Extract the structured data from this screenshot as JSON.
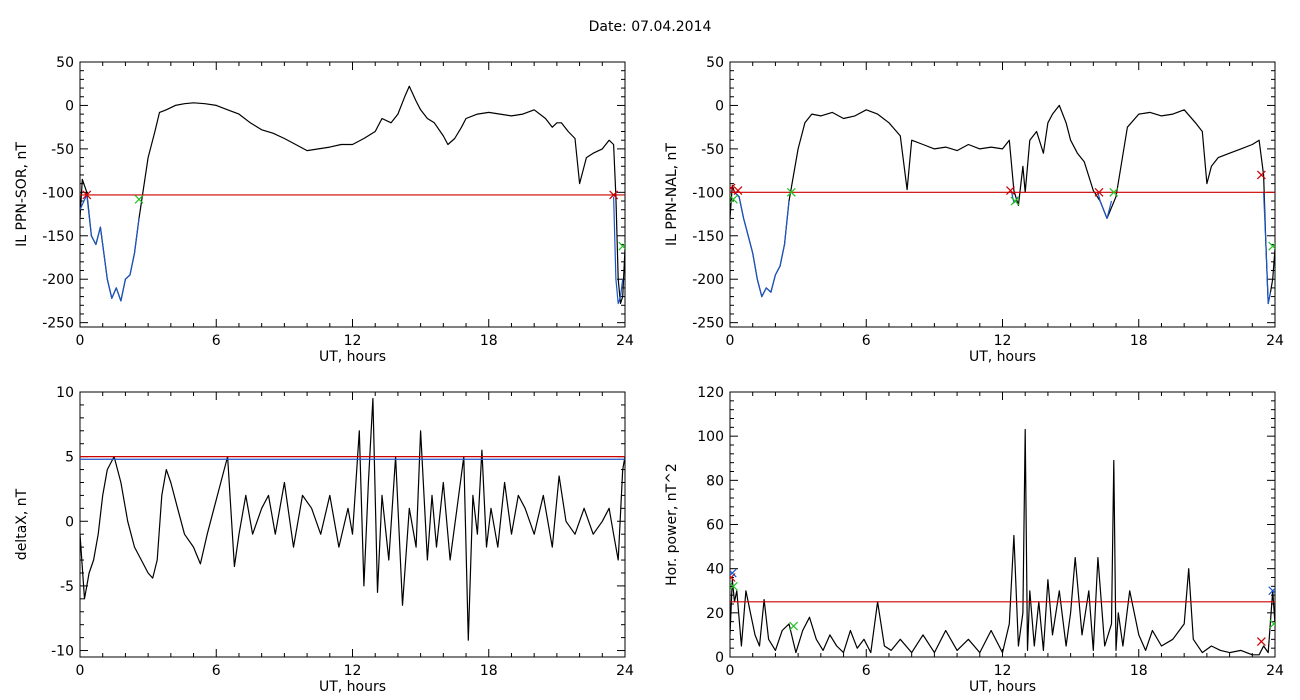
{
  "figure": {
    "title": "Date:  07.04.2014"
  },
  "chart_data": [
    {
      "type": "line",
      "id": "p1",
      "xlabel": "UT, hours",
      "ylabel": "IL PPN-SOR, nT",
      "xlim": [
        0,
        24
      ],
      "ylim": [
        -255,
        50
      ],
      "xticks": [
        0,
        6,
        12,
        18,
        24
      ],
      "yticks": [
        50,
        0,
        -50,
        -100,
        -150,
        -200,
        -250
      ],
      "threshold": -103,
      "series": [
        {
          "color": "#000000",
          "x": [
            0,
            0.1,
            0.3,
            0.5,
            0.7,
            0.9,
            1.0,
            1.2,
            1.4,
            1.6,
            1.8,
            2.0,
            2.2,
            2.4,
            2.6,
            3.0,
            3.3,
            3.5,
            3.8,
            4.2,
            4.6,
            5.0,
            5.5,
            6.0,
            6.5,
            7.0,
            7.5,
            8.0,
            8.5,
            9.0,
            9.5,
            10.0,
            10.5,
            11.0,
            11.5,
            12.0,
            12.5,
            13.0,
            13.3,
            13.7,
            14.0,
            14.3,
            14.5,
            14.8,
            15.0,
            15.3,
            15.6,
            16.0,
            16.2,
            16.5,
            16.8,
            17.0,
            17.5,
            18.0,
            18.5,
            19.0,
            19.5,
            20.0,
            20.5,
            20.8,
            21.0,
            21.2,
            21.5,
            21.8,
            22.0,
            22.3,
            22.6,
            23.0,
            23.3,
            23.5,
            23.6,
            23.7,
            23.8,
            23.9,
            24.0
          ],
          "y": [
            -130,
            -85,
            -100,
            -150,
            -160,
            -140,
            -160,
            -200,
            -222,
            -210,
            -225,
            -200,
            -195,
            -170,
            -130,
            -60,
            -30,
            -8,
            -5,
            0,
            2,
            3,
            2,
            0,
            -5,
            -10,
            -20,
            -28,
            -32,
            -38,
            -45,
            -52,
            -50,
            -48,
            -45,
            -45,
            -38,
            -30,
            -15,
            -20,
            -10,
            10,
            22,
            5,
            -5,
            -15,
            -20,
            -35,
            -45,
            -38,
            -25,
            -15,
            -10,
            -8,
            -10,
            -12,
            -10,
            -5,
            -15,
            -25,
            -20,
            -20,
            -30,
            -38,
            -90,
            -60,
            -55,
            -50,
            -40,
            -45,
            -105,
            -200,
            -228,
            -220,
            -165
          ]
        },
        {
          "color": "#1a56c8",
          "x": [
            0.0,
            0.3,
            0.5,
            0.7,
            0.9,
            1.0,
            1.2,
            1.4,
            1.6,
            1.8,
            2.0,
            2.2,
            2.4,
            2.6
          ],
          "y": [
            -120,
            -103,
            -150,
            -160,
            -140,
            -160,
            -200,
            -222,
            -210,
            -225,
            -200,
            -195,
            -170,
            -130
          ]
        },
        {
          "color": "#1a56c8",
          "x": [
            23.5,
            23.6,
            23.7,
            23.8,
            23.9
          ],
          "y": [
            -105,
            -200,
            -228,
            -220,
            -200
          ]
        }
      ],
      "markers": [
        {
          "color": "#cc0000",
          "x": [
            0.3,
            23.5
          ],
          "y": [
            -103,
            -103
          ]
        },
        {
          "color": "#22c322",
          "x": [
            2.6,
            23.9
          ],
          "y": [
            -108,
            -162
          ]
        }
      ]
    },
    {
      "type": "line",
      "id": "p2",
      "xlabel": "UT, hours",
      "ylabel": "IL PPN-NAL, nT",
      "xlim": [
        0,
        24
      ],
      "ylim": [
        -255,
        50
      ],
      "xticks": [
        0,
        6,
        12,
        18,
        24
      ],
      "yticks": [
        50,
        0,
        -50,
        -100,
        -150,
        -200,
        -250
      ],
      "threshold": -100,
      "series": [
        {
          "color": "#000000",
          "x": [
            0,
            0.1,
            0.2,
            0.4,
            0.6,
            0.8,
            1.0,
            1.2,
            1.4,
            1.6,
            1.8,
            2.0,
            2.2,
            2.4,
            2.6,
            3.0,
            3.3,
            3.6,
            4.0,
            4.5,
            5.0,
            5.5,
            6.0,
            6.5,
            7.0,
            7.5,
            7.8,
            8.0,
            8.5,
            9.0,
            9.5,
            10.0,
            10.5,
            11.0,
            11.5,
            12.0,
            12.3,
            12.5,
            12.7,
            12.9,
            13.0,
            13.2,
            13.5,
            13.8,
            14.0,
            14.2,
            14.5,
            14.8,
            15.0,
            15.3,
            15.6,
            16.0,
            16.3,
            16.6,
            17.0,
            17.5,
            18.0,
            18.5,
            19.0,
            19.5,
            20.0,
            20.5,
            20.8,
            21.0,
            21.2,
            21.5,
            22.0,
            22.5,
            23.0,
            23.3,
            23.5,
            23.6,
            23.7,
            23.8,
            23.9,
            24.0
          ],
          "y": [
            -130,
            -92,
            -100,
            -105,
            -130,
            -150,
            -170,
            -200,
            -220,
            -210,
            -215,
            -195,
            -185,
            -160,
            -110,
            -50,
            -20,
            -10,
            -12,
            -8,
            -15,
            -12,
            -5,
            -10,
            -20,
            -35,
            -97,
            -40,
            -45,
            -50,
            -48,
            -52,
            -45,
            -50,
            -48,
            -50,
            -40,
            -98,
            -115,
            -70,
            -100,
            -40,
            -30,
            -55,
            -20,
            -10,
            0,
            -20,
            -40,
            -55,
            -65,
            -98,
            -110,
            -130,
            -105,
            -25,
            -10,
            -8,
            -12,
            -10,
            -5,
            -20,
            -30,
            -90,
            -70,
            -60,
            -55,
            -50,
            -45,
            -40,
            -80,
            -160,
            -228,
            -215,
            -200,
            -165
          ]
        },
        {
          "color": "#1a56c8",
          "x": [
            0.2,
            0.4,
            0.6,
            0.8,
            1.0,
            1.2,
            1.4,
            1.6,
            1.8,
            2.0,
            2.2,
            2.4,
            2.6
          ],
          "y": [
            -100,
            -105,
            -130,
            -150,
            -170,
            -200,
            -220,
            -210,
            -215,
            -195,
            -185,
            -160,
            -110
          ]
        },
        {
          "color": "#1a56c8",
          "x": [
            12.4,
            12.5,
            12.7
          ],
          "y": [
            -100,
            -112,
            -105
          ]
        },
        {
          "color": "#1a56c8",
          "x": [
            16.2,
            16.3,
            16.6,
            16.8
          ],
          "y": [
            -100,
            -110,
            -130,
            -110
          ]
        },
        {
          "color": "#1a56c8",
          "x": [
            23.5,
            23.6,
            23.7,
            23.8
          ],
          "y": [
            -100,
            -160,
            -228,
            -215
          ]
        }
      ],
      "markers": [
        {
          "color": "#cc0000",
          "x": [
            0.05,
            0.35,
            12.35,
            16.25,
            23.4
          ],
          "y": [
            -95,
            -98,
            -98,
            -100,
            -80
          ]
        },
        {
          "color": "#22c322",
          "x": [
            0.15,
            2.7,
            12.55,
            16.9,
            23.9
          ],
          "y": [
            -108,
            -100,
            -110,
            -100,
            -162
          ]
        }
      ]
    },
    {
      "type": "line",
      "id": "p3",
      "xlabel": "UT, hours",
      "ylabel": "deltaX, nT",
      "xlim": [
        0,
        24
      ],
      "ylim": [
        -10.5,
        10
      ],
      "xticks": [
        0,
        6,
        12,
        18,
        24
      ],
      "yticks": [
        10,
        5,
        0,
        -5,
        -10
      ],
      "threshold": 5,
      "series": [
        {
          "color": "#000000",
          "x": [
            0,
            0.2,
            0.4,
            0.6,
            0.8,
            1.0,
            1.2,
            1.5,
            1.8,
            2.1,
            2.4,
            2.7,
            3.0,
            3.2,
            3.4,
            3.6,
            3.8,
            4.0,
            4.3,
            4.6,
            5.0,
            5.3,
            5.6,
            5.9,
            6.2,
            6.5,
            6.8,
            7.0,
            7.3,
            7.6,
            8.0,
            8.3,
            8.6,
            9.0,
            9.4,
            9.8,
            10.2,
            10.6,
            11.0,
            11.4,
            11.8,
            12.0,
            12.3,
            12.5,
            12.7,
            12.9,
            13.1,
            13.3,
            13.6,
            13.9,
            14.2,
            14.5,
            14.8,
            15.0,
            15.3,
            15.5,
            15.7,
            16.0,
            16.3,
            16.6,
            16.9,
            17.1,
            17.3,
            17.5,
            17.7,
            17.9,
            18.1,
            18.4,
            18.7,
            19.0,
            19.3,
            19.6,
            20.0,
            20.4,
            20.8,
            21.1,
            21.4,
            21.8,
            22.2,
            22.6,
            23.0,
            23.3,
            23.5,
            23.7,
            23.9,
            24.0
          ],
          "y": [
            -1,
            -6,
            -4,
            -3,
            -1,
            2,
            4,
            5,
            3,
            0,
            -2,
            -3,
            -4,
            -4.4,
            -3,
            2,
            4,
            3,
            1,
            -1,
            -2,
            -3.3,
            -1,
            1,
            3,
            5,
            -3.5,
            -1,
            2,
            -1,
            1,
            2,
            -1,
            3,
            -2,
            2,
            1,
            -1,
            2,
            -2,
            1,
            -1,
            7,
            -5,
            3,
            9.5,
            -5.5,
            2,
            -3,
            5,
            -6.5,
            1,
            -2,
            7,
            -3,
            2,
            -2,
            3,
            -3,
            1,
            5,
            -9.2,
            2,
            -1,
            5.5,
            -2,
            1,
            -2,
            3,
            -1,
            2,
            1,
            -1,
            2,
            -2,
            3.5,
            0,
            -1,
            1,
            -1,
            0,
            1,
            -1,
            -3,
            4,
            5
          ]
        }
      ],
      "threshold2": {
        "color": "#1a56c8",
        "y": 4.8
      }
    },
    {
      "type": "line",
      "id": "p4",
      "xlabel": "UT, hours",
      "ylabel": "Hor. power, nT^2",
      "xlim": [
        0,
        24
      ],
      "ylim": [
        0,
        120
      ],
      "xticks": [
        0,
        6,
        12,
        18,
        24
      ],
      "yticks": [
        120,
        100,
        80,
        60,
        40,
        20,
        0
      ],
      "threshold": 25,
      "series": [
        {
          "color": "#000000",
          "x": [
            0,
            0.1,
            0.2,
            0.3,
            0.5,
            0.7,
            0.9,
            1.1,
            1.3,
            1.5,
            1.7,
            2.0,
            2.3,
            2.6,
            2.9,
            3.2,
            3.5,
            3.8,
            4.1,
            4.4,
            4.7,
            5.0,
            5.3,
            5.6,
            5.9,
            6.2,
            6.5,
            6.8,
            7.1,
            7.5,
            8.0,
            8.5,
            9.0,
            9.5,
            10.0,
            10.5,
            11.0,
            11.5,
            12.0,
            12.3,
            12.5,
            12.7,
            12.9,
            13.0,
            13.1,
            13.2,
            13.4,
            13.6,
            13.8,
            14.0,
            14.2,
            14.5,
            14.8,
            15.0,
            15.2,
            15.5,
            15.8,
            16.0,
            16.2,
            16.5,
            16.8,
            16.9,
            17.0,
            17.1,
            17.3,
            17.6,
            18.0,
            18.3,
            18.6,
            19.0,
            19.5,
            20.0,
            20.2,
            20.4,
            20.8,
            21.2,
            21.6,
            22.0,
            22.5,
            23.0,
            23.3,
            23.5,
            23.7,
            23.9,
            24.0
          ],
          "y": [
            10,
            35,
            25,
            30,
            5,
            30,
            20,
            10,
            5,
            26,
            8,
            3,
            12,
            15,
            2,
            12,
            18,
            8,
            3,
            10,
            5,
            2,
            12,
            4,
            8,
            2,
            25,
            5,
            3,
            8,
            2,
            10,
            2,
            12,
            3,
            8,
            2,
            12,
            2,
            15,
            55,
            5,
            20,
            103,
            3,
            30,
            5,
            25,
            3,
            35,
            10,
            30,
            5,
            20,
            45,
            10,
            30,
            3,
            45,
            5,
            15,
            89,
            3,
            20,
            5,
            30,
            10,
            3,
            12,
            5,
            8,
            15,
            40,
            8,
            2,
            5,
            3,
            2,
            3,
            1,
            1,
            5,
            2,
            30,
            15
          ]
        }
      ],
      "markers": [
        {
          "color": "#cc0000",
          "x": [
            0.05,
            23.4
          ],
          "y": [
            36,
            7
          ]
        },
        {
          "color": "#22c322",
          "x": [
            0.15,
            2.8,
            23.95
          ],
          "y": [
            32,
            14,
            15
          ]
        },
        {
          "color": "#1a56c8",
          "x": [
            0.1,
            23.9
          ],
          "y": [
            38,
            30
          ]
        }
      ]
    }
  ]
}
